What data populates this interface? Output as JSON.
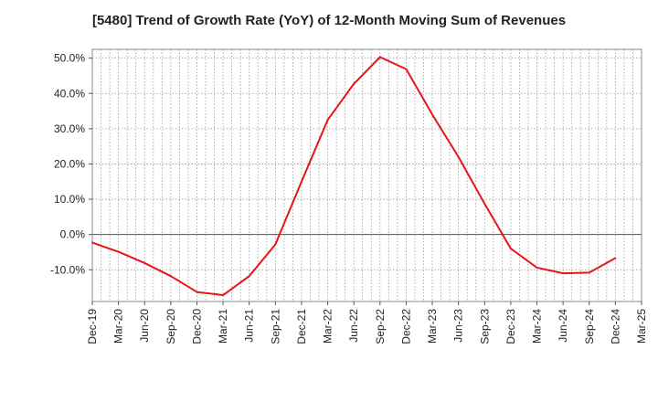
{
  "chart_data": {
    "type": "line",
    "title": "[5480]  Trend of Growth Rate (YoY) of 12-Month Moving Sum of Revenues",
    "xlabel": "",
    "ylabel": "",
    "x_ticks": [
      "Dec-19",
      "Mar-20",
      "Jun-20",
      "Sep-20",
      "Dec-20",
      "Mar-21",
      "Jun-21",
      "Sep-21",
      "Dec-21",
      "Mar-22",
      "Jun-22",
      "Sep-22",
      "Dec-22",
      "Mar-23",
      "Jun-23",
      "Sep-23",
      "Dec-23",
      "Mar-24",
      "Jun-24",
      "Sep-24",
      "Dec-24",
      "Mar-25"
    ],
    "y_ticks": [
      -10,
      0,
      10,
      20,
      30,
      40,
      50
    ],
    "y_tick_labels": [
      "-10.0%",
      "0.0%",
      "10.0%",
      "20.0%",
      "30.0%",
      "40.0%",
      "50.0%"
    ],
    "ylim": [
      -19,
      52.5
    ],
    "grid": true,
    "zero_line": true,
    "series": [
      {
        "color": "#e8141b",
        "x": [
          "Dec-19",
          "Mar-20",
          "Jun-20",
          "Sep-20",
          "Dec-20",
          "Mar-21",
          "Jun-21",
          "Sep-21",
          "Dec-21",
          "Mar-22",
          "Jun-22",
          "Sep-22",
          "Dec-22",
          "Mar-23",
          "Jun-23",
          "Sep-23",
          "Dec-23",
          "Mar-24",
          "Jun-24",
          "Sep-24",
          "Dec-24"
        ],
        "values": [
          -2.3,
          -4.9,
          -8.1,
          -11.8,
          -16.3,
          -17.2,
          -11.8,
          -2.8,
          15.0,
          32.5,
          42.7,
          50.3,
          46.9,
          34.0,
          22.0,
          8.7,
          -4.0,
          -9.4,
          -11.0,
          -10.8,
          -6.7
        ]
      }
    ]
  }
}
